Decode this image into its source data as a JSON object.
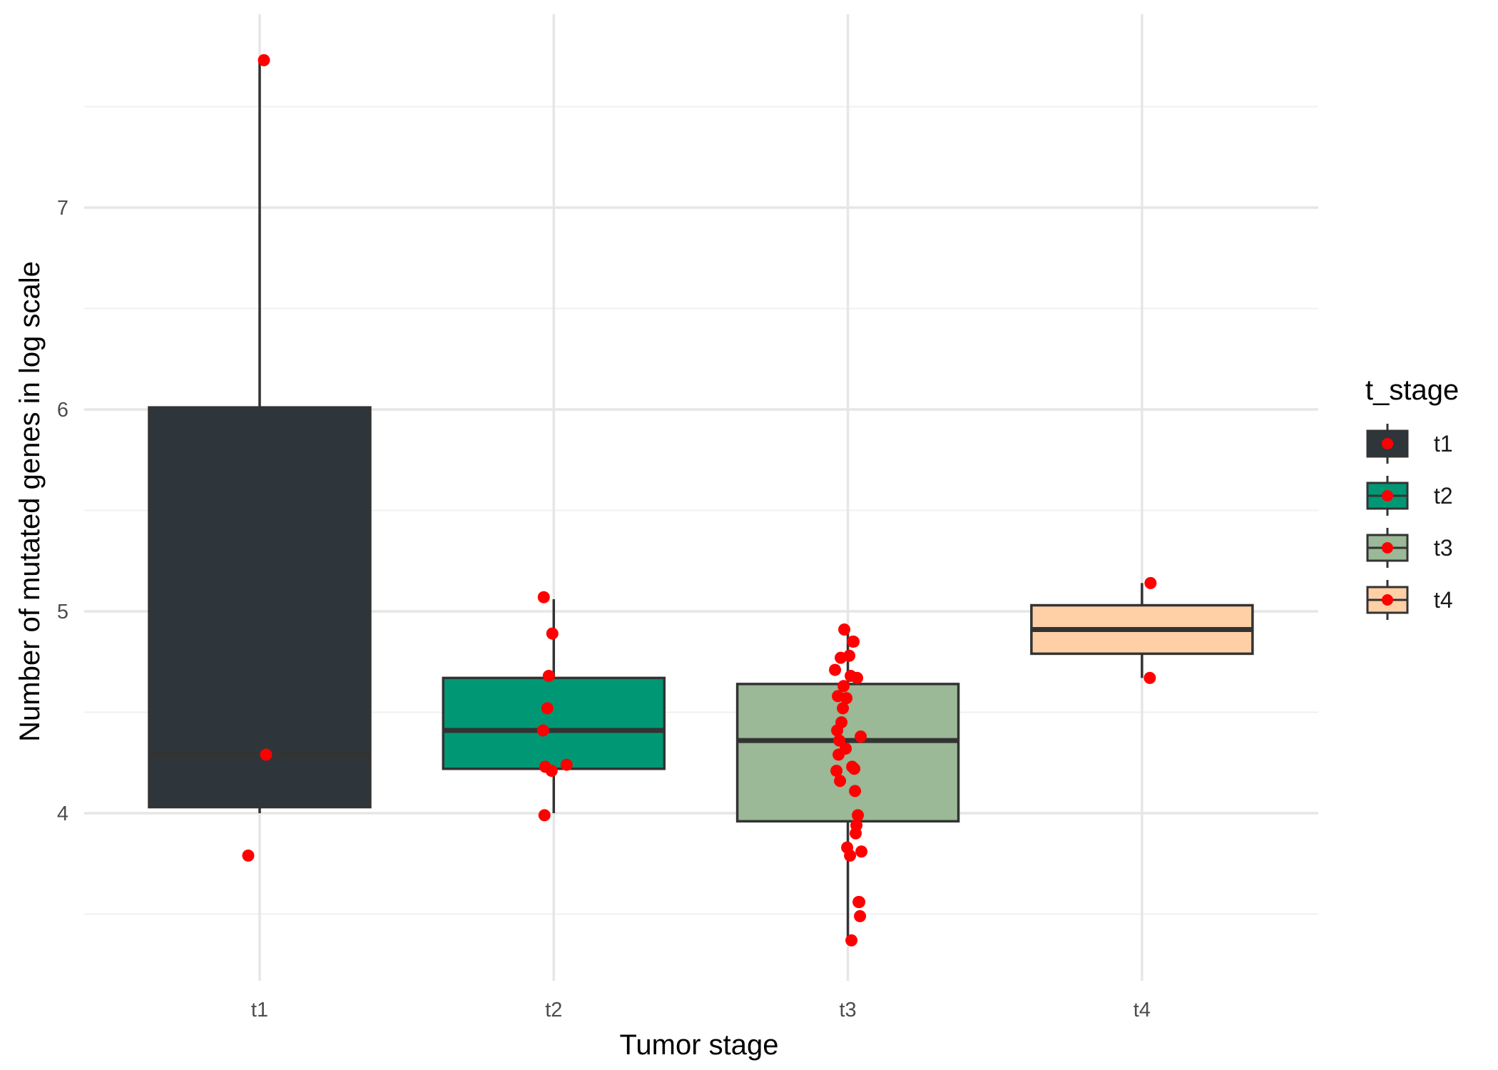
{
  "chart_data": {
    "type": "boxplot",
    "xlabel": "Tumor stage",
    "ylabel": "Number of mutated genes in log scale",
    "categories": [
      "t1",
      "t2",
      "t3",
      "t4"
    ],
    "ylim": [
      3.2,
      7.75
    ],
    "y_major_ticks": [
      4,
      5,
      6,
      7
    ],
    "grid": true,
    "legend": {
      "title": "t_stage",
      "position": "right",
      "items": [
        "t1",
        "t2",
        "t3",
        "t4"
      ]
    },
    "colors": {
      "t1": "#2e363b",
      "t2": "#009874",
      "t3": "#9bb897",
      "t4": "#ffcfa6",
      "points": "#ff0000",
      "outline": "#333333"
    },
    "boxes": [
      {
        "category": "t1",
        "lower_whisker": 4.0,
        "q1": 4.03,
        "median": 4.29,
        "q3": 6.01,
        "upper_whisker": 7.73
      },
      {
        "category": "t2",
        "lower_whisker": 4.0,
        "q1": 4.22,
        "median": 4.41,
        "q3": 4.67,
        "upper_whisker": 5.06
      },
      {
        "category": "t3",
        "lower_whisker": 3.37,
        "q1": 3.96,
        "median": 4.36,
        "q3": 4.64,
        "upper_whisker": 4.91
      },
      {
        "category": "t4",
        "lower_whisker": 4.67,
        "q1": 4.79,
        "median": 4.91,
        "q3": 5.03,
        "upper_whisker": 5.14
      }
    ],
    "points": [
      {
        "category": "t1",
        "values": [
          7.73,
          4.29,
          3.79
        ]
      },
      {
        "category": "t2",
        "values": [
          5.07,
          4.89,
          4.68,
          4.52,
          4.41,
          4.24,
          4.23,
          4.21,
          3.99
        ]
      },
      {
        "category": "t3",
        "values": [
          4.91,
          4.85,
          4.85,
          4.78,
          4.77,
          4.71,
          4.68,
          4.67,
          4.63,
          4.58,
          4.57,
          4.52,
          4.45,
          4.41,
          4.38,
          4.36,
          4.32,
          4.29,
          4.23,
          4.22,
          4.21,
          4.16,
          4.11,
          3.99,
          3.94,
          3.9,
          3.83,
          3.81,
          3.79,
          3.56,
          3.56,
          3.49,
          3.37
        ]
      },
      {
        "category": "t4",
        "values": [
          5.14,
          4.67
        ]
      }
    ]
  }
}
